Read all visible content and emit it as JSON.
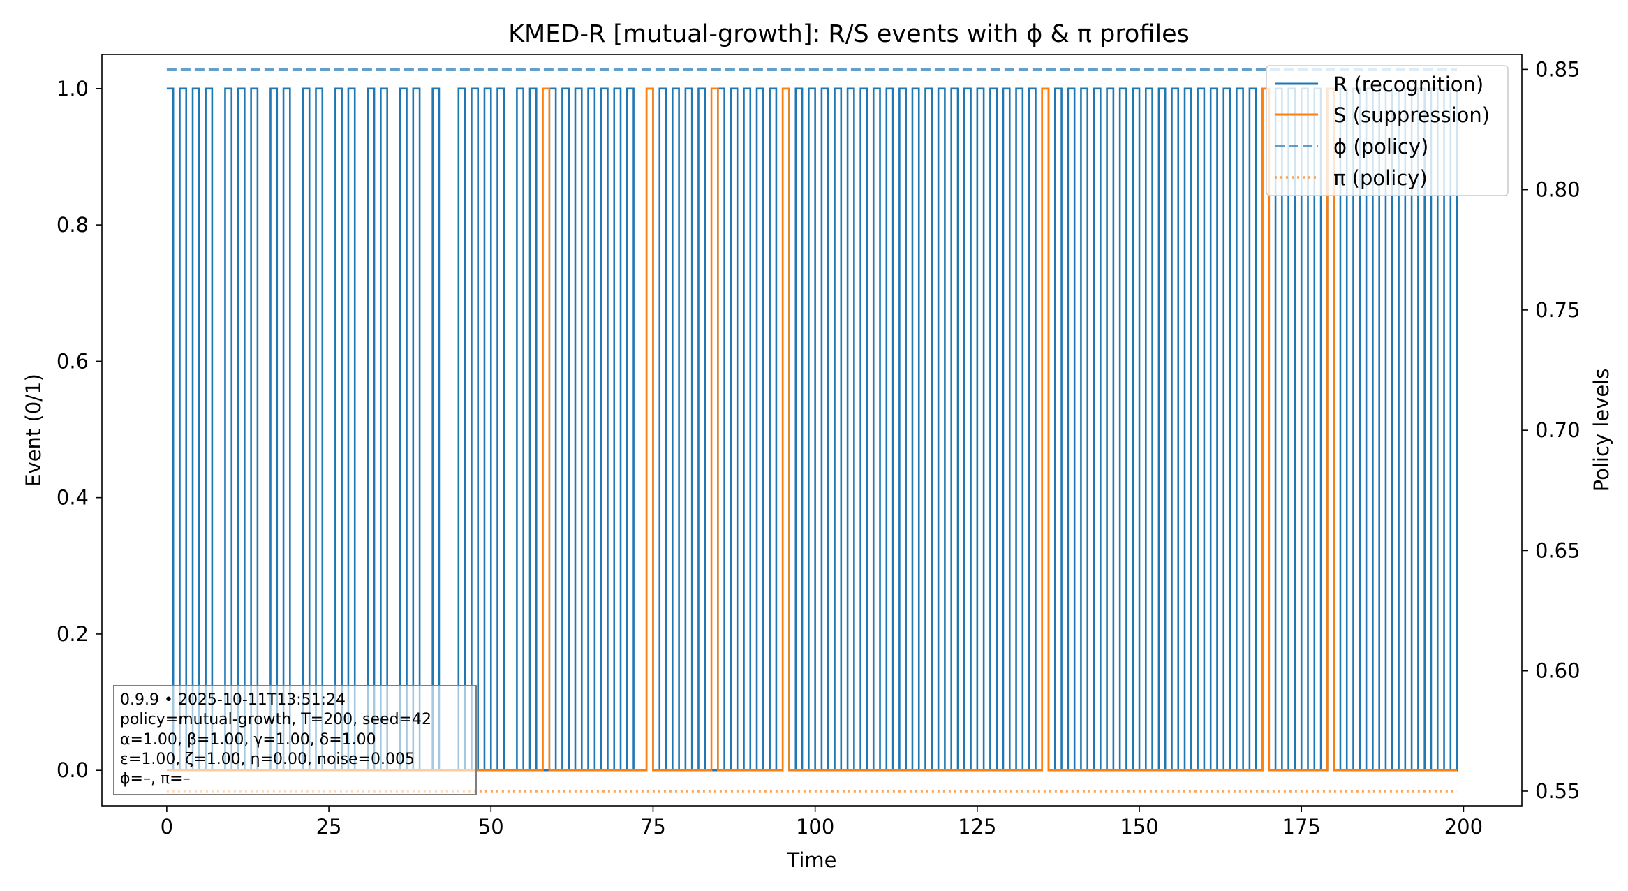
{
  "chart_data": {
    "type": "line",
    "title": "KMED-R [mutual-growth]: R/S events with ϕ & π profiles",
    "xlabel": "Time",
    "ylabel": "Event (0/1)",
    "y2label": "Policy levels",
    "xlim": [
      -10,
      209
    ],
    "ylim": [
      -0.052,
      1.05
    ],
    "y2lim": [
      0.5439,
      0.8562
    ],
    "xticks": [
      0,
      25,
      50,
      75,
      100,
      125,
      150,
      175,
      200
    ],
    "xtick_labels": [
      "0",
      "25",
      "50",
      "75",
      "100",
      "125",
      "150",
      "175",
      "200"
    ],
    "yticks": [
      0.0,
      0.2,
      0.4,
      0.6,
      0.8,
      1.0
    ],
    "ytick_labels": [
      "0.0",
      "0.2",
      "0.4",
      "0.6",
      "0.8",
      "1.0"
    ],
    "y2ticks": [
      0.55,
      0.6,
      0.65,
      0.7,
      0.75,
      0.8,
      0.85
    ],
    "y2tick_labels": [
      "0.55",
      "0.60",
      "0.65",
      "0.70",
      "0.75",
      "0.80",
      "0.85"
    ],
    "grid": false,
    "legend_position": "top-right",
    "series": [
      {
        "name": "R (recognition)",
        "axis": "left",
        "style": "solid",
        "color": "#1f77b4",
        "x": [
          0,
          1,
          2,
          3,
          4,
          5,
          6,
          7,
          8,
          9,
          10,
          11,
          12,
          13,
          14,
          15,
          16,
          17,
          18,
          19,
          20,
          21,
          22,
          23,
          24,
          25,
          26,
          27,
          28,
          29,
          30,
          31,
          32,
          33,
          34,
          35,
          36,
          37,
          38,
          39,
          40,
          41,
          42,
          43,
          44,
          45,
          46,
          47,
          48,
          49,
          50,
          51,
          52,
          53,
          54,
          55,
          56,
          57,
          58,
          59,
          60,
          61,
          62,
          63,
          64,
          65,
          66,
          67,
          68,
          69,
          70,
          71,
          72,
          73,
          74,
          75,
          76,
          77,
          78,
          79,
          80,
          81,
          82,
          83,
          84,
          85,
          86,
          87,
          88,
          89,
          90,
          91,
          92,
          93,
          94,
          95,
          96,
          97,
          98,
          99,
          100,
          101,
          102,
          103,
          104,
          105,
          106,
          107,
          108,
          109,
          110,
          111,
          112,
          113,
          114,
          115,
          116,
          117,
          118,
          119,
          120,
          121,
          122,
          123,
          124,
          125,
          126,
          127,
          128,
          129,
          130,
          131,
          132,
          133,
          134,
          135,
          136,
          137,
          138,
          139,
          140,
          141,
          142,
          143,
          144,
          145,
          146,
          147,
          148,
          149,
          150,
          151,
          152,
          153,
          154,
          155,
          156,
          157,
          158,
          159,
          160,
          161,
          162,
          163,
          164,
          165,
          166,
          167,
          168,
          169,
          170,
          171,
          172,
          173,
          174,
          175,
          176,
          177,
          178,
          179,
          180,
          181,
          182,
          183,
          184,
          185,
          186,
          187,
          188,
          189,
          190,
          191,
          192,
          193,
          194,
          195,
          196,
          197,
          198,
          199
        ],
        "values": [
          1,
          0,
          1,
          0,
          1,
          0,
          1,
          0,
          0,
          1,
          0,
          1,
          0,
          1,
          0,
          0,
          1,
          0,
          1,
          0,
          0,
          1,
          0,
          1,
          0,
          0,
          1,
          0,
          1,
          0,
          0,
          1,
          0,
          1,
          0,
          0,
          1,
          0,
          1,
          0,
          0,
          1,
          0,
          0,
          0,
          1,
          0,
          1,
          0,
          1,
          0,
          1,
          0,
          0,
          1,
          0,
          1,
          0,
          0,
          1,
          0,
          1,
          0,
          1,
          0,
          1,
          0,
          1,
          0,
          1,
          0,
          1,
          0,
          0,
          1,
          0,
          1,
          0,
          1,
          0,
          1,
          0,
          1,
          0,
          0,
          1,
          0,
          1,
          0,
          1,
          0,
          1,
          0,
          1,
          0,
          1,
          0,
          1,
          0,
          1,
          0,
          1,
          0,
          1,
          0,
          1,
          0,
          1,
          0,
          1,
          0,
          1,
          0,
          1,
          0,
          1,
          0,
          1,
          0,
          1,
          0,
          1,
          0,
          1,
          0,
          1,
          0,
          1,
          0,
          1,
          0,
          1,
          0,
          1,
          0,
          1,
          0,
          1,
          0,
          1,
          0,
          1,
          0,
          1,
          0,
          1,
          0,
          1,
          0,
          1,
          0,
          1,
          0,
          1,
          0,
          1,
          0,
          1,
          0,
          1,
          0,
          1,
          0,
          1,
          0,
          1,
          0,
          1,
          0,
          1,
          0,
          1,
          0,
          1,
          0,
          1,
          0,
          1,
          0,
          1,
          0,
          1,
          0,
          1,
          0,
          1,
          0,
          1,
          0,
          1,
          0,
          1,
          0,
          1,
          0,
          1,
          0,
          1,
          0,
          1
        ]
      },
      {
        "name": "S (suppression)",
        "axis": "left",
        "style": "solid",
        "color": "#ff7f0e",
        "x": [
          0,
          57,
          58,
          59,
          73,
          74,
          75,
          83,
          84,
          85,
          94,
          95,
          96,
          134,
          135,
          136,
          168,
          169,
          170,
          178,
          179,
          180,
          199
        ],
        "values": [
          0,
          0,
          1,
          0,
          0,
          1,
          0,
          0,
          1,
          0,
          0,
          1,
          0,
          0,
          1,
          0,
          0,
          1,
          0,
          0,
          1,
          0,
          0
        ]
      },
      {
        "name": "ϕ (policy)",
        "axis": "right",
        "style": "dashed",
        "color": "#1f77b4",
        "x": [
          0,
          199
        ],
        "values": [
          0.85,
          0.85
        ]
      },
      {
        "name": "π (policy)",
        "axis": "right",
        "style": "dotted",
        "color": "#ff7f0e",
        "x": [
          0,
          199
        ],
        "values": [
          0.55,
          0.55
        ]
      }
    ],
    "annotation": {
      "lines": [
        "0.9.9  •  2025-10-11T13:51:24",
        "policy=mutual-growth, T=200, seed=42",
        "α=1.00, β=1.00, γ=1.00, δ=1.00",
        "ε=1.00, ζ=1.00, η=0.00, noise=0.005",
        "ϕ=–, π=–"
      ],
      "position": "bottom-left"
    }
  }
}
